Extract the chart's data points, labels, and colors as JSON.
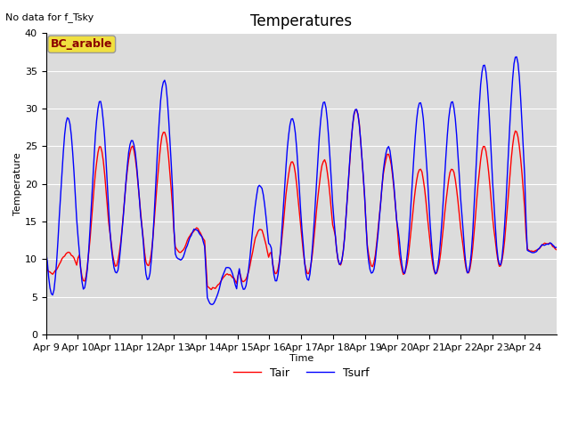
{
  "title": "Temperatures",
  "xlabel": "Time",
  "ylabel": "Temperature",
  "no_data_text": "No data for f_Tsky",
  "bc_label": "BC_arable",
  "legend_tair": "Tair",
  "legend_tsurf": "Tsurf",
  "ylim": [
    0,
    40
  ],
  "yticks": [
    0,
    5,
    10,
    15,
    20,
    25,
    30,
    35,
    40
  ],
  "xtick_labels": [
    "Apr 9",
    "Apr 10",
    "Apr 11",
    "Apr 12",
    "Apr 13",
    "Apr 14",
    "Apr 15",
    "Apr 16",
    "Apr 17",
    "Apr 18",
    "Apr 19",
    "Apr 20",
    "Apr 21",
    "Apr 22",
    "Apr 23",
    "Apr 24"
  ],
  "bg_color": "#dcdcdc",
  "tair_color": "red",
  "tsurf_color": "blue",
  "linewidth": 1.0,
  "title_fontsize": 12,
  "annotation_fontsize": 8,
  "tick_fontsize": 8,
  "bc_box_facecolor": "#f0e040",
  "bc_box_edgecolor": "#999999",
  "bc_text_color": "#8b0000",
  "n_days": 16,
  "hours_per_day": 24,
  "day_mins_air": [
    8,
    7,
    9,
    9,
    11,
    6,
    7,
    8,
    8,
    9,
    9,
    8,
    8,
    8,
    9,
    11
  ],
  "day_maxs_air": [
    11,
    25,
    25,
    27,
    14,
    8,
    14,
    23,
    23,
    30,
    24,
    22,
    22,
    25,
    27,
    12
  ],
  "day_mins_surf": [
    5,
    6,
    8,
    7,
    10,
    4,
    6,
    7,
    7,
    9,
    8,
    8,
    8,
    8,
    9,
    11
  ],
  "day_maxs_surf": [
    29,
    31,
    26,
    34,
    14,
    9,
    20,
    29,
    31,
    30,
    25,
    31,
    31,
    36,
    37,
    12
  ]
}
